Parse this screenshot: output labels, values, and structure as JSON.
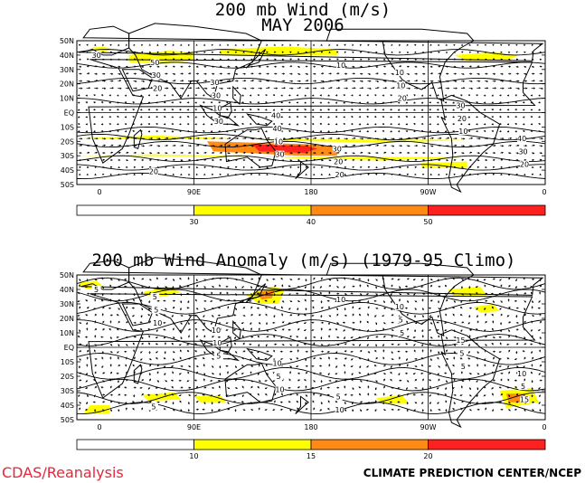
{
  "colors": {
    "white": "#ffffff",
    "yellow": "#ffff00",
    "orange_light": "#ffcc00",
    "orange": "#ff8a14",
    "red": "#ff2020",
    "land": "#000000",
    "credit_left": "#e8253a"
  },
  "panels": [
    {
      "id": "top",
      "title_line1": "200 mb Wind (m/s)",
      "title_line2": "MAY 2006",
      "lat_labels": [
        "50N",
        "40N",
        "30N",
        "20N",
        "10N",
        "EQ",
        "10S",
        "20S",
        "30S",
        "40S",
        "50S"
      ],
      "lon_labels": [
        "0",
        "90E",
        "180",
        "90W",
        "0"
      ],
      "contour_labels": [
        "30",
        "20",
        "30",
        "30",
        "10",
        "20",
        "10",
        "20",
        "30",
        "10",
        "10",
        "20",
        "10",
        "20",
        "30",
        "50",
        "30",
        "40",
        "20",
        "10",
        "30",
        "40",
        "20",
        "30",
        "40",
        "30"
      ],
      "colorbar": {
        "thresholds": [
          "30",
          "40",
          "50"
        ],
        "colors": [
          "#ffffff",
          "#ffff00",
          "#ff8a14",
          "#ff2020"
        ]
      }
    },
    {
      "id": "bottom",
      "title_line1": "200 mb Wind Anomaly (m/s) (1979-95 Climo)",
      "lat_labels": [
        "50N",
        "40N",
        "30N",
        "20N",
        "10N",
        "EQ",
        "10S",
        "20S",
        "30S",
        "40S",
        "50S"
      ],
      "lon_labels": [
        "0",
        "90E",
        "180",
        "90W",
        "0"
      ],
      "contour_labels": [
        "5",
        "10",
        "5",
        "10",
        "10",
        "5",
        "5",
        "15",
        "5",
        "10",
        "5",
        "10",
        "5",
        "5",
        "5",
        "5",
        "10",
        "10",
        "5",
        "10",
        "15",
        "10",
        "5"
      ],
      "colorbar": {
        "thresholds": [
          "10",
          "15",
          "20"
        ],
        "colors": [
          "#ffffff",
          "#ffff00",
          "#ff8a14",
          "#ff2020"
        ]
      }
    }
  ],
  "credits": {
    "left": "CDAS/Reanalysis",
    "right": "CLIMATE PREDICTION CENTER/NCEP"
  }
}
